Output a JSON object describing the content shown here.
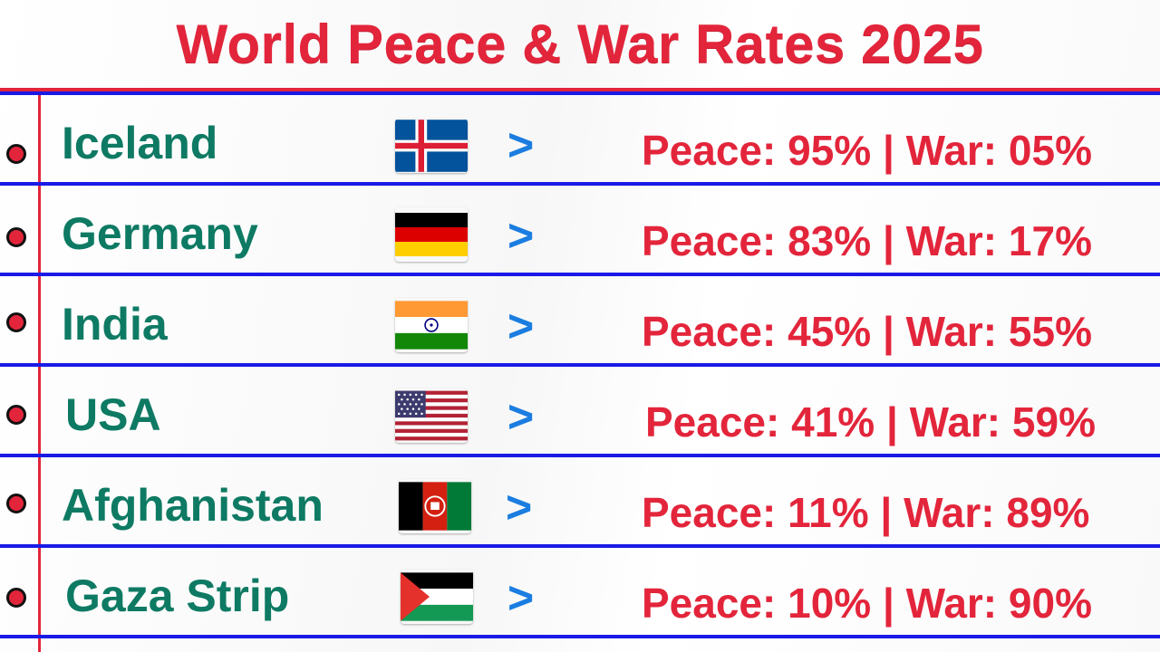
{
  "title": "World Peace & War Rates 2025",
  "colors": {
    "title": "#e3253b",
    "country_text": "#0e7a63",
    "rate_text": "#e3253b",
    "chevron": "#1b7de0",
    "row_rule": "#1a1ae6",
    "margin_rule": "#e3253b"
  },
  "rows": [
    {
      "country": "Iceland",
      "flag_icon": "iceland-flag-icon",
      "chevron": ">",
      "rate_text": "Peace: 95% | War: 05%",
      "peace_pct": 95,
      "war_pct": 5
    },
    {
      "country": "Germany",
      "flag_icon": "germany-flag-icon",
      "chevron": ">",
      "rate_text": "Peace: 83% | War: 17%",
      "peace_pct": 83,
      "war_pct": 17
    },
    {
      "country": "India",
      "flag_icon": "india-flag-icon",
      "chevron": ">",
      "rate_text": "Peace: 45% | War: 55%",
      "peace_pct": 45,
      "war_pct": 55
    },
    {
      "country": "USA",
      "flag_icon": "usa-flag-icon",
      "chevron": ">",
      "rate_text": "Peace: 41% | War: 59%",
      "peace_pct": 41,
      "war_pct": 59
    },
    {
      "country": "Afghanistan",
      "flag_icon": "afghanistan-flag-icon",
      "chevron": ">",
      "rate_text": "Peace: 11% | War: 89%",
      "peace_pct": 11,
      "war_pct": 89
    },
    {
      "country": "Gaza Strip",
      "flag_icon": "palestine-flag-icon",
      "chevron": ">",
      "rate_text": "Peace: 10% | War: 90%",
      "peace_pct": 10,
      "war_pct": 90
    }
  ]
}
